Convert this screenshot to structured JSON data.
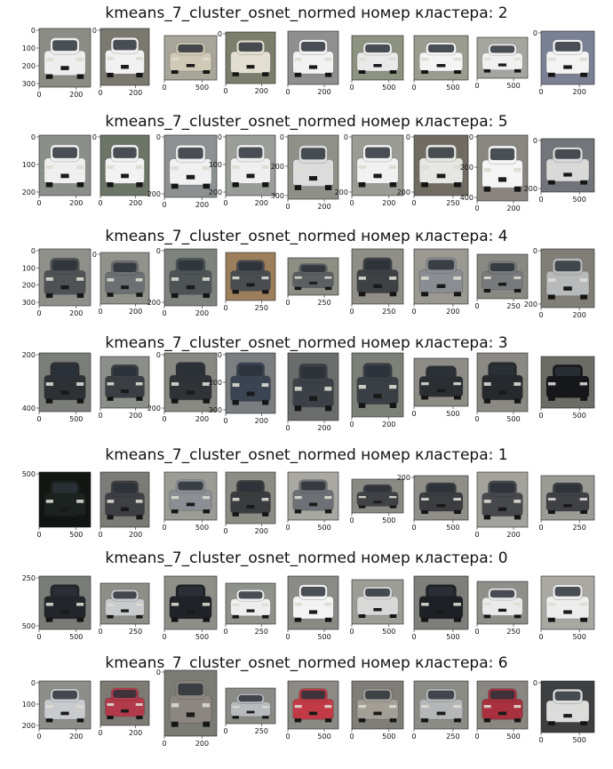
{
  "figure": {
    "rows": [
      {
        "title": "kmeans_7_cluster_osnet_normed номер кластера: 2",
        "cars": [
          {
            "body": "#eeeeee",
            "bg": "#8c8c86",
            "xticks": [
              "0",
              "200"
            ],
            "yticks": [
              "0",
              "100",
              "200",
              "300"
            ]
          },
          {
            "body": "#f1f1f1",
            "bg": "#7a786f",
            "xticks": [
              "0",
              "200"
            ],
            "yticks": [
              "0"
            ]
          },
          {
            "body": "#cfc9b6",
            "bg": "#a8a59a",
            "xticks": [
              "0",
              "500"
            ],
            "yticks": []
          },
          {
            "body": "#e3dfd0",
            "bg": "#7c7e6c",
            "xticks": [
              "0",
              "200"
            ],
            "yticks": [
              "0"
            ]
          },
          {
            "body": "#f2f2f2",
            "bg": "#8f8f8f",
            "xticks": [
              "0",
              "200"
            ],
            "yticks": []
          },
          {
            "body": "#e9e9e9",
            "bg": "#8d9380",
            "xticks": [
              "0",
              "500"
            ],
            "yticks": []
          },
          {
            "body": "#f4f4f4",
            "bg": "#9a9c8f",
            "xticks": [
              "0",
              "500"
            ],
            "yticks": []
          },
          {
            "body": "#f0f0f0",
            "bg": "#a4a59e",
            "xticks": [
              "0",
              "500"
            ],
            "yticks": []
          },
          {
            "body": "#f3f3f3",
            "bg": "#7b8195",
            "xticks": [
              "0",
              "200"
            ],
            "yticks": [
              "0"
            ]
          }
        ]
      },
      {
        "title": "kmeans_7_cluster_osnet_normed номер кластера: 5",
        "cars": [
          {
            "body": "#efefef",
            "bg": "#8a8f8a",
            "xticks": [
              "0",
              "200"
            ],
            "yticks": [
              "0",
              "100",
              "200"
            ]
          },
          {
            "body": "#f2f2f2",
            "bg": "#6d7566",
            "xticks": [
              "0",
              "200"
            ],
            "yticks": [
              "0"
            ]
          },
          {
            "body": "#f0f0f0",
            "bg": "#8d9191",
            "xticks": [
              "0",
              "200"
            ],
            "yticks": [
              "0",
              "200"
            ]
          },
          {
            "body": "#efefef",
            "bg": "#9a9d98",
            "xticks": [
              "0",
              "200"
            ],
            "yticks": [
              "0",
              "100",
              "200"
            ]
          },
          {
            "body": "#dcdcdc",
            "bg": "#8f9188",
            "xticks": [
              "0",
              "200"
            ],
            "yticks": [
              "0",
              "200",
              "300"
            ]
          },
          {
            "body": "#f1f1f1",
            "bg": "#9c9c96",
            "xticks": [
              "0",
              "200"
            ],
            "yticks": [
              "0",
              "200"
            ]
          },
          {
            "body": "#e6e6e2",
            "bg": "#706c62",
            "xticks": [
              "0",
              "250"
            ],
            "yticks": [
              "0",
              "200"
            ]
          },
          {
            "body": "#f5f5f5",
            "bg": "#8a8680",
            "xticks": [
              "0",
              "200"
            ],
            "yticks": [
              "0",
              "200",
              "400"
            ]
          },
          {
            "body": "#d9d9d9",
            "bg": "#72757a",
            "xticks": [
              "0",
              "500"
            ],
            "yticks": [
              "0",
              "200"
            ]
          }
        ]
      },
      {
        "title": "kmeans_7_cluster_osnet_normed номер кластера: 4",
        "cars": [
          {
            "body": "#4f5254",
            "bg": "#8f908a",
            "xticks": [
              "0",
              "200"
            ],
            "yticks": [
              "0",
              "100",
              "200",
              "300"
            ]
          },
          {
            "body": "#6d7073",
            "bg": "#92928c",
            "xticks": [
              "0",
              "200"
            ],
            "yticks": [
              "0"
            ]
          },
          {
            "body": "#4e5356",
            "bg": "#7f837d",
            "xticks": [
              "0",
              "200"
            ],
            "yticks": [
              "0",
              "200"
            ]
          },
          {
            "body": "#4a4d50",
            "bg": "#9b7f5c",
            "xticks": [
              "0",
              "250"
            ],
            "yticks": []
          },
          {
            "body": "#5c5f61",
            "bg": "#8d8e84",
            "xticks": [
              "0",
              "250"
            ],
            "yticks": []
          },
          {
            "body": "#3e4144",
            "bg": "#8f8f88",
            "xticks": [
              "0",
              "250"
            ],
            "yticks": []
          },
          {
            "body": "#8a8d91",
            "bg": "#9a9a92",
            "xticks": [
              "0",
              "200"
            ],
            "yticks": []
          },
          {
            "body": "#77797b",
            "bg": "#888982",
            "xticks": [
              "0",
              "250"
            ],
            "yticks": []
          },
          {
            "body": "#b8b9ba",
            "bg": "#807e77",
            "xticks": [
              "0",
              "200"
            ],
            "yticks": [
              "0",
              "200"
            ]
          }
        ]
      },
      {
        "title": "kmeans_7_cluster_osnet_normed номер кластера: 3",
        "cars": [
          {
            "body": "#2d3136",
            "bg": "#7b7d79",
            "xticks": [
              "0",
              "500"
            ],
            "yticks": [
              "200",
              "400"
            ]
          },
          {
            "body": "#3b3f43",
            "bg": "#8c8e89",
            "xticks": [
              "0",
              "200"
            ],
            "yticks": []
          },
          {
            "body": "#2f3337",
            "bg": "#898983",
            "xticks": [
              "0",
              "200"
            ],
            "yticks": [
              "0",
              "200"
            ]
          },
          {
            "body": "#3a4452",
            "bg": "#7a7e80",
            "xticks": [
              "0",
              "200"
            ],
            "yticks": [
              "0",
              "200",
              "300"
            ]
          },
          {
            "body": "#3c4147",
            "bg": "#6b6d6c",
            "xticks": [
              "0",
              "200"
            ],
            "yticks": []
          },
          {
            "body": "#3a3f46",
            "bg": "#7c8078",
            "xticks": [
              "0",
              "200"
            ],
            "yticks": []
          },
          {
            "body": "#2b2f34",
            "bg": "#8d8c86",
            "xticks": [
              "0",
              "500"
            ],
            "yticks": []
          },
          {
            "body": "#26292d",
            "bg": "#8a8983",
            "xticks": [
              "0",
              "500"
            ],
            "yticks": []
          },
          {
            "body": "#15171b",
            "bg": "#6c6c67",
            "xticks": [
              "0",
              "500"
            ],
            "yticks": []
          }
        ]
      },
      {
        "title": "kmeans_7_cluster_osnet_normed номер кластера: 1",
        "cars": [
          {
            "body": "#1c2220",
            "bg": "#111612",
            "xticks": [
              "0",
              "500"
            ],
            "yticks": [
              "500"
            ]
          },
          {
            "body": "#3e3f42",
            "bg": "#7b7c77",
            "xticks": [
              "0",
              "200"
            ],
            "yticks": []
          },
          {
            "body": "#8b8e93",
            "bg": "#9c9c97",
            "xticks": [
              "0",
              "500"
            ],
            "yticks": []
          },
          {
            "body": "#3a3c3f",
            "bg": "#8c8c86",
            "xticks": [
              "0",
              "200"
            ],
            "yticks": []
          },
          {
            "body": "#6d7075",
            "bg": "#a9a8a2",
            "xticks": [
              "0",
              "500"
            ],
            "yticks": []
          },
          {
            "body": "#404246",
            "bg": "#8a8a85",
            "xticks": [
              "0",
              "500"
            ],
            "yticks": []
          },
          {
            "body": "#3b3d40",
            "bg": "#8f8e88",
            "xticks": [
              "0",
              "500"
            ],
            "yticks": [
              "200"
            ]
          },
          {
            "body": "#46484c",
            "bg": "#a3a29c",
            "xticks": [
              "0",
              "200"
            ],
            "yticks": []
          },
          {
            "body": "#3f4145",
            "bg": "#9b9b96",
            "xticks": [
              "0",
              "250"
            ],
            "yticks": []
          }
        ]
      },
      {
        "title": "kmeans_7_cluster_osnet_normed номер кластера: 0",
        "cars": [
          {
            "body": "#22262a",
            "bg": "#7a7c77",
            "xticks": [
              "0",
              "500"
            ],
            "yticks": [
              "250",
              "500"
            ]
          },
          {
            "body": "#c9cbcc",
            "bg": "#8d8e88",
            "xticks": [
              "0",
              "250"
            ],
            "yticks": []
          },
          {
            "body": "#1f2226",
            "bg": "#8f8f8a",
            "xticks": [
              "0",
              "500"
            ],
            "yticks": []
          },
          {
            "body": "#eeeeee",
            "bg": "#8f918b",
            "xticks": [
              "0",
              "250"
            ],
            "yticks": []
          },
          {
            "body": "#f3f3f3",
            "bg": "#8a8b86",
            "xticks": [
              "0",
              "500"
            ],
            "yticks": []
          },
          {
            "body": "#d8d8d8",
            "bg": "#9d9d97",
            "xticks": [
              "0",
              "500"
            ],
            "yticks": []
          },
          {
            "body": "#1d2024",
            "bg": "#7e7f7a",
            "xticks": [
              "0",
              "500"
            ],
            "yticks": []
          },
          {
            "body": "#eaeaea",
            "bg": "#8f8f8a",
            "xticks": [
              "0",
              "250"
            ],
            "yticks": []
          },
          {
            "body": "#ededed",
            "bg": "#a9a8a3",
            "xticks": [
              "0",
              "500"
            ],
            "yticks": []
          }
        ]
      },
      {
        "title": "kmeans_7_cluster_osnet_normed номер кластера: 6",
        "cars": [
          {
            "body": "#c8cacd",
            "bg": "#8d8e89",
            "xticks": [
              "0",
              "200"
            ],
            "yticks": [
              "0",
              "100",
              "200"
            ]
          },
          {
            "body": "#b23a4a",
            "bg": "#7d7b74",
            "xticks": [
              "0",
              "200"
            ],
            "yticks": []
          },
          {
            "body": "#8c8680",
            "bg": "#7c7c76",
            "xticks": [
              "0",
              "200"
            ],
            "yticks": [
              "0"
            ]
          },
          {
            "body": "#b8bbbe",
            "bg": "#8a8b86",
            "xticks": [
              "0",
              "250"
            ],
            "yticks": []
          },
          {
            "body": "#c23a46",
            "bg": "#8b8a84",
            "xticks": [
              "0",
              "500"
            ],
            "yticks": []
          },
          {
            "body": "#a39e96",
            "bg": "#7f7e78",
            "xticks": [
              "0",
              "500"
            ],
            "yticks": []
          },
          {
            "body": "#b4b6b8",
            "bg": "#8c8c87",
            "xticks": [
              "0",
              "250"
            ],
            "yticks": []
          },
          {
            "body": "#a8303f",
            "bg": "#888781",
            "xticks": [
              "0",
              "500"
            ],
            "yticks": []
          },
          {
            "body": "#dcdcdc",
            "bg": "#3d3f40",
            "xticks": [
              "0",
              "500"
            ],
            "yticks": [
              "0"
            ]
          }
        ]
      }
    ]
  }
}
